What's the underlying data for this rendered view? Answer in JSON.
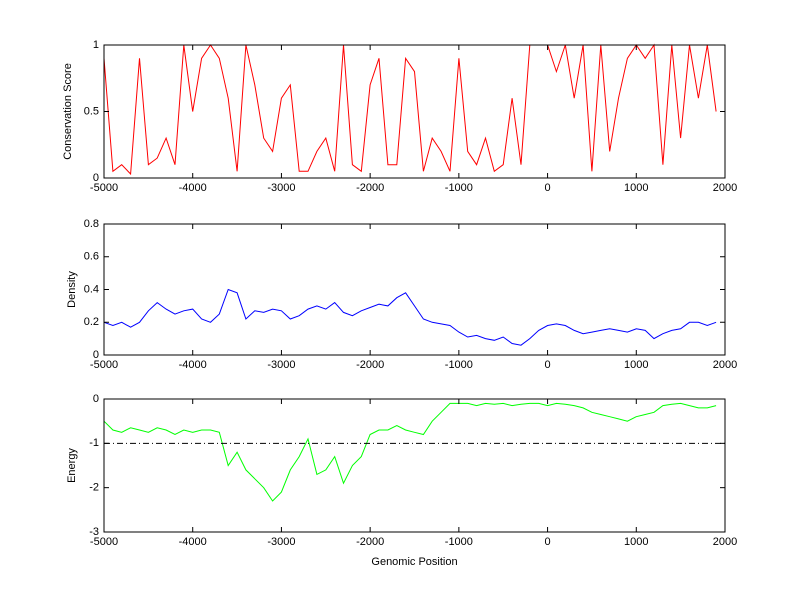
{
  "chart_data": [
    {
      "type": "line",
      "ylabel": "Conservation Score",
      "x": [
        -5000,
        -4900,
        -4800,
        -4700,
        -4600,
        -4500,
        -4400,
        -4300,
        -4200,
        -4100,
        -4000,
        -3900,
        -3800,
        -3700,
        -3600,
        -3500,
        -3400,
        -3300,
        -3200,
        -3100,
        -3000,
        -2900,
        -2800,
        -2700,
        -2600,
        -2500,
        -2400,
        -2300,
        -2200,
        -2100,
        -2000,
        -1900,
        -1800,
        -1700,
        -1600,
        -1500,
        -1400,
        -1300,
        -1200,
        -1100,
        -1000,
        -900,
        -800,
        -700,
        -600,
        -500,
        -400,
        -300,
        -200,
        -100,
        0,
        100,
        200,
        300,
        400,
        500,
        600,
        700,
        800,
        900,
        1000,
        1100,
        1200,
        1300,
        1400,
        1500,
        1600,
        1700,
        1800,
        1900
      ],
      "series": [
        {
          "color": "#ff0000",
          "values": [
            0.9,
            0.05,
            0.1,
            0.03,
            0.9,
            0.1,
            0.15,
            0.3,
            0.1,
            1,
            0.5,
            0.9,
            1,
            0.9,
            0.6,
            0.05,
            1,
            0.7,
            0.3,
            0.2,
            0.6,
            0.7,
            0.05,
            0.05,
            0.2,
            0.3,
            0.05,
            1,
            0.1,
            0.05,
            0.7,
            0.9,
            0.1,
            0.1,
            0.9,
            0.8,
            0.05,
            0.3,
            0.2,
            0.05,
            0.9,
            0.2,
            0.1,
            0.3,
            0.05,
            0.1,
            0.6,
            0.1,
            1,
            1,
            1,
            0.8,
            1,
            0.6,
            1,
            0.05,
            1,
            0.2,
            0.6,
            0.9,
            1,
            0.9,
            1,
            0.1,
            1,
            0.3,
            1,
            0.6,
            1,
            0.5
          ]
        }
      ],
      "xlim": [
        -5000,
        2000
      ],
      "xticks": [
        -5000,
        -4000,
        -3000,
        -2000,
        -1000,
        0,
        1000,
        2000
      ],
      "ylim": [
        0,
        1
      ],
      "yticks": [
        0,
        0.5,
        1
      ]
    },
    {
      "type": "line",
      "ylabel": "Density",
      "x": [
        -5000,
        -4900,
        -4800,
        -4700,
        -4600,
        -4500,
        -4400,
        -4300,
        -4200,
        -4100,
        -4000,
        -3900,
        -3800,
        -3700,
        -3600,
        -3500,
        -3400,
        -3300,
        -3200,
        -3100,
        -3000,
        -2900,
        -2800,
        -2700,
        -2600,
        -2500,
        -2400,
        -2300,
        -2200,
        -2100,
        -2000,
        -1900,
        -1800,
        -1700,
        -1600,
        -1500,
        -1400,
        -1300,
        -1200,
        -1100,
        -1000,
        -900,
        -800,
        -700,
        -600,
        -500,
        -400,
        -300,
        -200,
        -100,
        0,
        100,
        200,
        300,
        400,
        500,
        600,
        700,
        800,
        900,
        1000,
        1100,
        1200,
        1300,
        1400,
        1500,
        1600,
        1700,
        1800,
        1900
      ],
      "series": [
        {
          "color": "#0000ff",
          "values": [
            0.2,
            0.18,
            0.2,
            0.17,
            0.2,
            0.27,
            0.32,
            0.28,
            0.25,
            0.27,
            0.28,
            0.22,
            0.2,
            0.25,
            0.4,
            0.38,
            0.22,
            0.27,
            0.26,
            0.28,
            0.27,
            0.22,
            0.24,
            0.28,
            0.3,
            0.28,
            0.32,
            0.26,
            0.24,
            0.27,
            0.29,
            0.31,
            0.3,
            0.35,
            0.38,
            0.3,
            0.22,
            0.2,
            0.19,
            0.18,
            0.14,
            0.11,
            0.12,
            0.1,
            0.09,
            0.11,
            0.07,
            0.06,
            0.1,
            0.15,
            0.18,
            0.19,
            0.18,
            0.15,
            0.13,
            0.14,
            0.15,
            0.16,
            0.15,
            0.14,
            0.16,
            0.15,
            0.1,
            0.13,
            0.15,
            0.16,
            0.2,
            0.2,
            0.18,
            0.2
          ]
        }
      ],
      "xlim": [
        -5000,
        2000
      ],
      "xticks": [
        -5000,
        -4000,
        -3000,
        -2000,
        -1000,
        0,
        1000,
        2000
      ],
      "ylim": [
        0,
        0.8
      ],
      "yticks": [
        0,
        0.2,
        0.4,
        0.6,
        0.8
      ]
    },
    {
      "type": "line",
      "ylabel": "Energy",
      "xlabel": "Genomic Position",
      "x": [
        -5000,
        -4900,
        -4800,
        -4700,
        -4600,
        -4500,
        -4400,
        -4300,
        -4200,
        -4100,
        -4000,
        -3900,
        -3800,
        -3700,
        -3600,
        -3500,
        -3400,
        -3300,
        -3200,
        -3100,
        -3000,
        -2900,
        -2800,
        -2700,
        -2600,
        -2500,
        -2400,
        -2300,
        -2200,
        -2100,
        -2000,
        -1900,
        -1800,
        -1700,
        -1600,
        -1500,
        -1400,
        -1300,
        -1200,
        -1100,
        -1000,
        -900,
        -800,
        -700,
        -600,
        -500,
        -400,
        -300,
        -200,
        -100,
        0,
        100,
        200,
        300,
        400,
        500,
        600,
        700,
        800,
        900,
        1000,
        1100,
        1200,
        1300,
        1400,
        1500,
        1600,
        1700,
        1800,
        1900
      ],
      "series": [
        {
          "color": "#00ff00",
          "values": [
            -0.5,
            -0.7,
            -0.75,
            -0.65,
            -0.7,
            -0.75,
            -0.65,
            -0.7,
            -0.8,
            -0.7,
            -0.75,
            -0.7,
            -0.7,
            -0.75,
            -1.5,
            -1.2,
            -1.6,
            -1.8,
            -2,
            -2.3,
            -2.1,
            -1.6,
            -1.3,
            -0.9,
            -1.7,
            -1.6,
            -1.3,
            -1.9,
            -1.5,
            -1.3,
            -0.8,
            -0.7,
            -0.7,
            -0.6,
            -0.7,
            -0.75,
            -0.8,
            -0.5,
            -0.3,
            -0.1,
            -0.1,
            -0.1,
            -0.15,
            -0.1,
            -0.12,
            -0.1,
            -0.15,
            -0.12,
            -0.1,
            -0.1,
            -0.15,
            -0.1,
            -0.12,
            -0.15,
            -0.2,
            -0.3,
            -0.35,
            -0.4,
            -0.45,
            -0.5,
            -0.4,
            -0.35,
            -0.3,
            -0.15,
            -0.12,
            -0.1,
            -0.15,
            -0.2,
            -0.2,
            -0.15
          ]
        }
      ],
      "hline": -1,
      "xlim": [
        -5000,
        2000
      ],
      "xticks": [
        -5000,
        -4000,
        -3000,
        -2000,
        -1000,
        0,
        1000,
        2000
      ],
      "ylim": [
        -3,
        0
      ],
      "yticks": [
        -3,
        -2,
        -1,
        0
      ]
    }
  ]
}
